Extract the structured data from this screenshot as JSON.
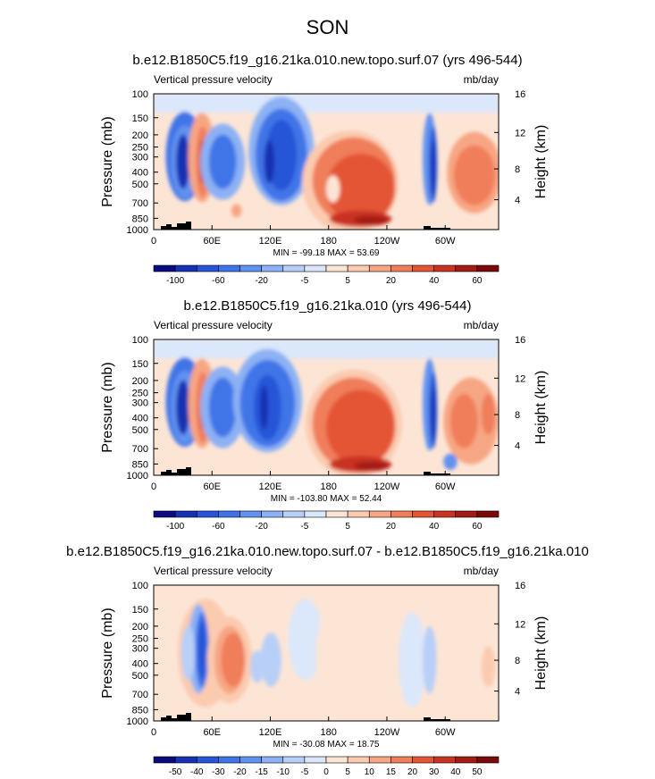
{
  "figure": {
    "title": "SON"
  },
  "chart_data": [
    {
      "type": "heatmap",
      "title": "b.e12.B1850C5.f19_g16.21ka.010.new.topo.surf.07 (yrs 496-544)",
      "left_label": "Vertical pressure velocity",
      "right_label": "mb/day",
      "ylabel": "Pressure (mb)",
      "y2label": "Height (km)",
      "xticks": [
        "0",
        "60E",
        "120E",
        "180",
        "120W",
        "60W"
      ],
      "yticks": [
        "100",
        "150",
        "200",
        "250",
        "300",
        "400",
        "500",
        "700",
        "850",
        "1000"
      ],
      "y2ticks": [
        "16",
        "12",
        "8",
        "4"
      ],
      "minmax": "MIN = -99.18   MAX =  53.69",
      "colorbar_labels": [
        "-100",
        "-60",
        "-20",
        "-5",
        "5",
        "20",
        "40",
        "60"
      ]
    },
    {
      "type": "heatmap",
      "title": "b.e12.B1850C5.f19_g16.21ka.010 (yrs 496-544)",
      "left_label": "Vertical pressure velocity",
      "right_label": "mb/day",
      "ylabel": "Pressure (mb)",
      "y2label": "Height (km)",
      "xticks": [
        "0",
        "60E",
        "120E",
        "180",
        "120W",
        "60W"
      ],
      "yticks": [
        "100",
        "150",
        "200",
        "250",
        "300",
        "400",
        "500",
        "700",
        "850",
        "1000"
      ],
      "y2ticks": [
        "16",
        "12",
        "8",
        "4"
      ],
      "minmax": "MIN = -103.80   MAX =  52.44",
      "colorbar_labels": [
        "-100",
        "-60",
        "-20",
        "-5",
        "5",
        "20",
        "40",
        "60"
      ]
    },
    {
      "type": "heatmap",
      "title": "b.e12.B1850C5.f19_g16.21ka.010.new.topo.surf.07 - b.e12.B1850C5.f19_g16.21ka.010",
      "left_label": "Vertical pressure velocity",
      "right_label": "mb/day",
      "ylabel": "Pressure (mb)",
      "y2label": "Height (km)",
      "xticks": [
        "0",
        "60E",
        "120E",
        "180",
        "120W",
        "60W"
      ],
      "yticks": [
        "100",
        "150",
        "200",
        "250",
        "300",
        "400",
        "500",
        "700",
        "850",
        "1000"
      ],
      "y2ticks": [
        "16",
        "12",
        "8",
        "4"
      ],
      "minmax": "MIN = -30.08   MAX =  18.75",
      "colorbar_labels": [
        "-50",
        "-40",
        "-30",
        "-20",
        "-15",
        "-10",
        "-5",
        "0",
        "5",
        "10",
        "15",
        "20",
        "30",
        "40",
        "50"
      ]
    }
  ],
  "colors": {
    "palette": [
      "#0b0b80",
      "#1631b3",
      "#2855d8",
      "#3f74e8",
      "#6092f0",
      "#8cb1f4",
      "#b8cff7",
      "#dbe7fa",
      "#fde5d6",
      "#fbcbb0",
      "#f7a683",
      "#f07e5a",
      "#e45535",
      "#c93322",
      "#a41a14",
      "#7a0a0a"
    ]
  }
}
